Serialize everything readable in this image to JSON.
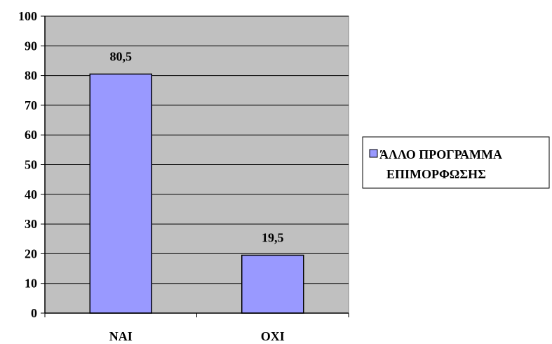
{
  "chart_data": {
    "type": "bar",
    "categories": [
      "ΝΑΙ",
      "ΟΧΙ"
    ],
    "series": [
      {
        "name": "ΆΛΛΟ ΠΡΟΓΡΑΜΜΑ ΕΠΙΜΟΡΦΩΣΗΣ",
        "values": [
          80.5,
          19.5
        ]
      }
    ],
    "data_labels": [
      "80,5",
      "19,5"
    ],
    "ylim": [
      0,
      100
    ],
    "yticks": [
      0,
      10,
      20,
      30,
      40,
      50,
      60,
      70,
      80,
      90,
      100
    ],
    "grid": true,
    "legend": {
      "position": "right",
      "lines": [
        "ΆΛΛΟ ΠΡΟΓΡΑΜΜΑ",
        "ΕΠΙΜΟΡΦΩΣΗΣ"
      ]
    },
    "colors": {
      "plot_background": "#c0c0c0",
      "bar_fill": "#9999ff",
      "bar_stroke": "#000000",
      "gridline": "#000000"
    }
  }
}
